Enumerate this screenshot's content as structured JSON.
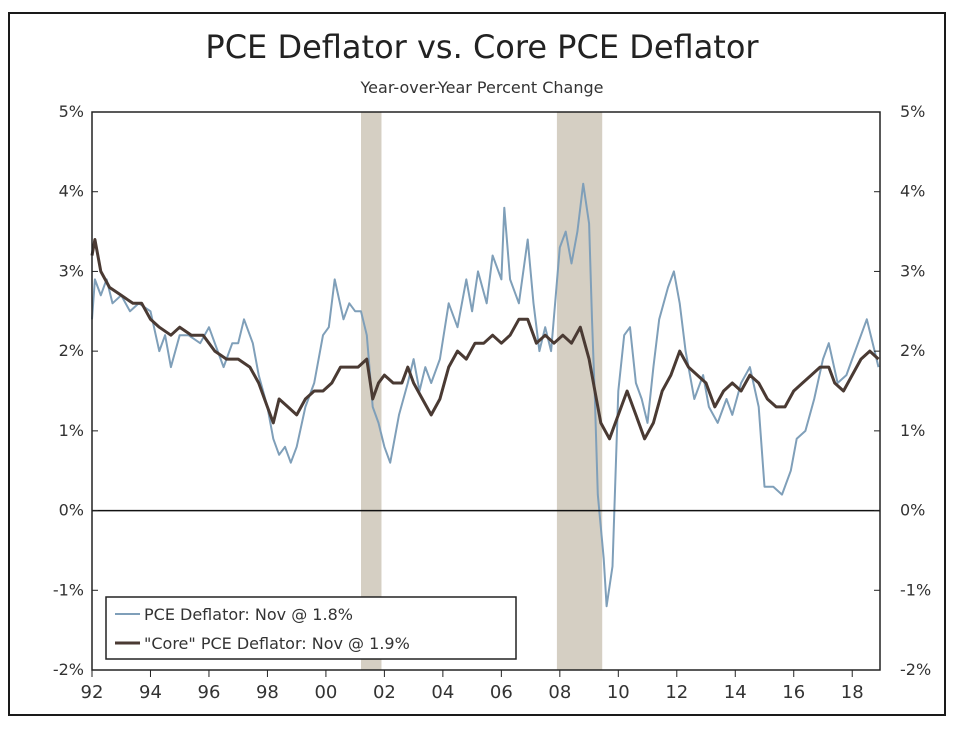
{
  "chart_data": {
    "type": "line",
    "title": "PCE Deflator vs. Core PCE Deflator",
    "subtitle": "Year-over-Year Percent Change",
    "y_ticks": [
      "5%",
      "4%",
      "3%",
      "2%",
      "1%",
      "0%",
      "-1%",
      "-2%"
    ],
    "y_tick_values": [
      5,
      4,
      3,
      2,
      1,
      0,
      -1,
      -2
    ],
    "ylim": [
      -2,
      5
    ],
    "x_ticks": [
      "92",
      "94",
      "96",
      "98",
      "00",
      "02",
      "04",
      "06",
      "08",
      "10",
      "12",
      "14",
      "16",
      "18"
    ],
    "x_tick_values": [
      1992,
      1994,
      1996,
      1998,
      2000,
      2002,
      2004,
      2006,
      2008,
      2010,
      2012,
      2014,
      2016,
      2018
    ],
    "xlim": [
      1992,
      2018.95
    ],
    "recessions": [
      [
        2001.2,
        2001.9
      ],
      [
        2007.9,
        2009.45
      ]
    ],
    "grid": false,
    "legend_position": "bottom-left",
    "colors": {
      "pce": "#7f9fb9",
      "core": "#4a3a33",
      "recession": "#d5cfc3",
      "zero_line": "#111111"
    },
    "series": [
      {
        "name": "PCE Deflator: Nov @ 1.8%",
        "color": "#7f9fb9",
        "points": [
          [
            1992.0,
            2.4
          ],
          [
            1992.1,
            2.9
          ],
          [
            1992.3,
            2.7
          ],
          [
            1992.5,
            2.9
          ],
          [
            1992.7,
            2.6
          ],
          [
            1993.0,
            2.7
          ],
          [
            1993.3,
            2.5
          ],
          [
            1993.6,
            2.6
          ],
          [
            1994.0,
            2.5
          ],
          [
            1994.3,
            2.0
          ],
          [
            1994.5,
            2.2
          ],
          [
            1994.7,
            1.8
          ],
          [
            1995.0,
            2.2
          ],
          [
            1995.3,
            2.2
          ],
          [
            1995.7,
            2.1
          ],
          [
            1996.0,
            2.3
          ],
          [
            1996.3,
            2.0
          ],
          [
            1996.5,
            1.8
          ],
          [
            1996.8,
            2.1
          ],
          [
            1997.0,
            2.1
          ],
          [
            1997.2,
            2.4
          ],
          [
            1997.5,
            2.1
          ],
          [
            1997.7,
            1.7
          ],
          [
            1998.0,
            1.3
          ],
          [
            1998.2,
            0.9
          ],
          [
            1998.4,
            0.7
          ],
          [
            1998.6,
            0.8
          ],
          [
            1998.8,
            0.6
          ],
          [
            1999.0,
            0.8
          ],
          [
            1999.3,
            1.3
          ],
          [
            1999.6,
            1.6
          ],
          [
            1999.9,
            2.2
          ],
          [
            2000.1,
            2.3
          ],
          [
            2000.3,
            2.9
          ],
          [
            2000.6,
            2.4
          ],
          [
            2000.8,
            2.6
          ],
          [
            2001.0,
            2.5
          ],
          [
            2001.2,
            2.5
          ],
          [
            2001.4,
            2.2
          ],
          [
            2001.6,
            1.3
          ],
          [
            2001.8,
            1.1
          ],
          [
            2002.0,
            0.8
          ],
          [
            2002.2,
            0.6
          ],
          [
            2002.5,
            1.2
          ],
          [
            2002.8,
            1.6
          ],
          [
            2003.0,
            1.9
          ],
          [
            2003.2,
            1.5
          ],
          [
            2003.4,
            1.8
          ],
          [
            2003.6,
            1.6
          ],
          [
            2003.9,
            1.9
          ],
          [
            2004.2,
            2.6
          ],
          [
            2004.5,
            2.3
          ],
          [
            2004.8,
            2.9
          ],
          [
            2005.0,
            2.5
          ],
          [
            2005.2,
            3.0
          ],
          [
            2005.5,
            2.6
          ],
          [
            2005.7,
            3.2
          ],
          [
            2006.0,
            2.9
          ],
          [
            2006.1,
            3.8
          ],
          [
            2006.3,
            2.9
          ],
          [
            2006.6,
            2.6
          ],
          [
            2006.9,
            3.4
          ],
          [
            2007.1,
            2.6
          ],
          [
            2007.3,
            2.0
          ],
          [
            2007.5,
            2.3
          ],
          [
            2007.7,
            2.0
          ],
          [
            2008.0,
            3.3
          ],
          [
            2008.2,
            3.5
          ],
          [
            2008.4,
            3.1
          ],
          [
            2008.6,
            3.5
          ],
          [
            2008.8,
            4.1
          ],
          [
            2009.0,
            3.6
          ],
          [
            2009.1,
            2.4
          ],
          [
            2009.2,
            1.4
          ],
          [
            2009.3,
            0.2
          ],
          [
            2009.5,
            -0.6
          ],
          [
            2009.6,
            -1.2
          ],
          [
            2009.8,
            -0.7
          ],
          [
            2010.0,
            1.5
          ],
          [
            2010.2,
            2.2
          ],
          [
            2010.4,
            2.3
          ],
          [
            2010.6,
            1.6
          ],
          [
            2010.8,
            1.4
          ],
          [
            2011.0,
            1.1
          ],
          [
            2011.2,
            1.8
          ],
          [
            2011.4,
            2.4
          ],
          [
            2011.7,
            2.8
          ],
          [
            2011.9,
            3.0
          ],
          [
            2012.1,
            2.6
          ],
          [
            2012.3,
            2.0
          ],
          [
            2012.6,
            1.4
          ],
          [
            2012.9,
            1.7
          ],
          [
            2013.1,
            1.3
          ],
          [
            2013.4,
            1.1
          ],
          [
            2013.7,
            1.4
          ],
          [
            2013.9,
            1.2
          ],
          [
            2014.2,
            1.6
          ],
          [
            2014.5,
            1.8
          ],
          [
            2014.8,
            1.3
          ],
          [
            2015.0,
            0.3
          ],
          [
            2015.3,
            0.3
          ],
          [
            2015.6,
            0.2
          ],
          [
            2015.9,
            0.5
          ],
          [
            2016.1,
            0.9
          ],
          [
            2016.4,
            1.0
          ],
          [
            2016.7,
            1.4
          ],
          [
            2017.0,
            1.9
          ],
          [
            2017.2,
            2.1
          ],
          [
            2017.5,
            1.6
          ],
          [
            2017.8,
            1.7
          ],
          [
            2018.0,
            1.9
          ],
          [
            2018.3,
            2.2
          ],
          [
            2018.5,
            2.4
          ],
          [
            2018.7,
            2.1
          ],
          [
            2018.9,
            1.8
          ]
        ]
      },
      {
        "name": "\"Core\" PCE Deflator: Nov @ 1.9%",
        "color": "#4a3a33",
        "points": [
          [
            1992.0,
            3.2
          ],
          [
            1992.1,
            3.4
          ],
          [
            1992.3,
            3.0
          ],
          [
            1992.6,
            2.8
          ],
          [
            1993.0,
            2.7
          ],
          [
            1993.4,
            2.6
          ],
          [
            1993.7,
            2.6
          ],
          [
            1994.0,
            2.4
          ],
          [
            1994.3,
            2.3
          ],
          [
            1994.7,
            2.2
          ],
          [
            1995.0,
            2.3
          ],
          [
            1995.4,
            2.2
          ],
          [
            1995.8,
            2.2
          ],
          [
            1996.2,
            2.0
          ],
          [
            1996.6,
            1.9
          ],
          [
            1997.0,
            1.9
          ],
          [
            1997.4,
            1.8
          ],
          [
            1997.7,
            1.6
          ],
          [
            1998.0,
            1.3
          ],
          [
            1998.2,
            1.1
          ],
          [
            1998.4,
            1.4
          ],
          [
            1998.7,
            1.3
          ],
          [
            1999.0,
            1.2
          ],
          [
            1999.3,
            1.4
          ],
          [
            1999.6,
            1.5
          ],
          [
            1999.9,
            1.5
          ],
          [
            2000.2,
            1.6
          ],
          [
            2000.5,
            1.8
          ],
          [
            2000.8,
            1.8
          ],
          [
            2001.1,
            1.8
          ],
          [
            2001.4,
            1.9
          ],
          [
            2001.6,
            1.4
          ],
          [
            2001.8,
            1.6
          ],
          [
            2002.0,
            1.7
          ],
          [
            2002.3,
            1.6
          ],
          [
            2002.6,
            1.6
          ],
          [
            2002.8,
            1.8
          ],
          [
            2003.0,
            1.6
          ],
          [
            2003.3,
            1.4
          ],
          [
            2003.6,
            1.2
          ],
          [
            2003.9,
            1.4
          ],
          [
            2004.2,
            1.8
          ],
          [
            2004.5,
            2.0
          ],
          [
            2004.8,
            1.9
          ],
          [
            2005.1,
            2.1
          ],
          [
            2005.4,
            2.1
          ],
          [
            2005.7,
            2.2
          ],
          [
            2006.0,
            2.1
          ],
          [
            2006.3,
            2.2
          ],
          [
            2006.6,
            2.4
          ],
          [
            2006.9,
            2.4
          ],
          [
            2007.2,
            2.1
          ],
          [
            2007.5,
            2.2
          ],
          [
            2007.8,
            2.1
          ],
          [
            2008.1,
            2.2
          ],
          [
            2008.4,
            2.1
          ],
          [
            2008.7,
            2.3
          ],
          [
            2009.0,
            1.9
          ],
          [
            2009.2,
            1.5
          ],
          [
            2009.4,
            1.1
          ],
          [
            2009.7,
            0.9
          ],
          [
            2010.0,
            1.2
          ],
          [
            2010.3,
            1.5
          ],
          [
            2010.6,
            1.2
          ],
          [
            2010.9,
            0.9
          ],
          [
            2011.2,
            1.1
          ],
          [
            2011.5,
            1.5
          ],
          [
            2011.8,
            1.7
          ],
          [
            2012.1,
            2.0
          ],
          [
            2012.4,
            1.8
          ],
          [
            2012.7,
            1.7
          ],
          [
            2013.0,
            1.6
          ],
          [
            2013.3,
            1.3
          ],
          [
            2013.6,
            1.5
          ],
          [
            2013.9,
            1.6
          ],
          [
            2014.2,
            1.5
          ],
          [
            2014.5,
            1.7
          ],
          [
            2014.8,
            1.6
          ],
          [
            2015.1,
            1.4
          ],
          [
            2015.4,
            1.3
          ],
          [
            2015.7,
            1.3
          ],
          [
            2016.0,
            1.5
          ],
          [
            2016.3,
            1.6
          ],
          [
            2016.6,
            1.7
          ],
          [
            2016.9,
            1.8
          ],
          [
            2017.2,
            1.8
          ],
          [
            2017.4,
            1.6
          ],
          [
            2017.7,
            1.5
          ],
          [
            2018.0,
            1.7
          ],
          [
            2018.3,
            1.9
          ],
          [
            2018.6,
            2.0
          ],
          [
            2018.9,
            1.9
          ]
        ]
      }
    ]
  }
}
